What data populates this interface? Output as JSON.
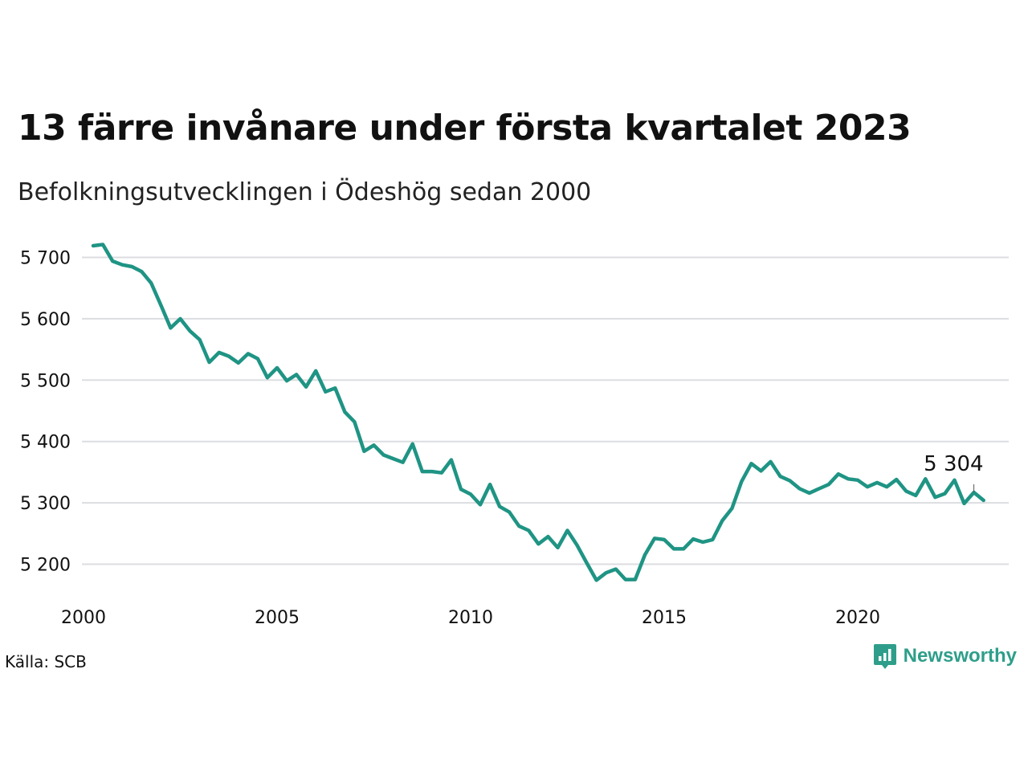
{
  "header": {
    "title": "13 färre invånare under första kvartalet 2023",
    "subtitle": "Befolkningsutvecklingen i Ödeshög sedan 2000"
  },
  "footer": {
    "source": "Källa: SCB",
    "brand": "Newsworthy"
  },
  "colors": {
    "line": "#1f9484",
    "grid": "#dcdde1",
    "text": "#111111",
    "brand": "#2e9e8a"
  },
  "icons": {
    "brand_logo": "newsworthy-logo-icon"
  },
  "chart_data": {
    "type": "line",
    "title": "13 färre invånare under första kvartalet 2023",
    "subtitle": "Befolkningsutvecklingen i Ödeshög sedan 2000",
    "xlabel": "",
    "ylabel": "",
    "grid": "horizontal",
    "legend": "none",
    "xlim": [
      2000,
      2024
    ],
    "ylim": [
      5160,
      5730
    ],
    "yticks": [
      5200,
      5300,
      5400,
      5500,
      5600,
      5700
    ],
    "ytick_labels": [
      "5 200",
      "5 300",
      "5 400",
      "5 500",
      "5 600",
      "5 700"
    ],
    "xticks": [
      2000,
      2005,
      2010,
      2015,
      2020
    ],
    "xtick_labels": [
      "2000",
      "2005",
      "2010",
      "2015",
      "2020"
    ],
    "annotation": {
      "text": "5 304",
      "x": 2023.0,
      "y": 5304
    },
    "series": [
      {
        "x": [
          2000.25,
          2000.5,
          2000.75,
          2001.0,
          2001.25,
          2001.5,
          2001.75,
          2002.0,
          2002.25,
          2002.5,
          2002.75,
          2003.0,
          2003.25,
          2003.5,
          2003.75,
          2004.0,
          2004.25,
          2004.5,
          2004.75,
          2005.0,
          2005.25,
          2005.5,
          2005.75,
          2006.0,
          2006.25,
          2006.5,
          2006.75,
          2007.0,
          2007.25,
          2007.5,
          2007.75,
          2008.0,
          2008.25,
          2008.5,
          2008.75,
          2009.0,
          2009.25,
          2009.5,
          2009.75,
          2010.0,
          2010.25,
          2010.5,
          2010.75,
          2011.0,
          2011.25,
          2011.5,
          2011.75,
          2012.0,
          2012.25,
          2012.5,
          2012.75,
          2013.0,
          2013.25,
          2013.5,
          2013.75,
          2014.0,
          2014.25,
          2014.5,
          2014.75,
          2015.0,
          2015.25,
          2015.5,
          2015.75,
          2016.0,
          2016.25,
          2016.5,
          2016.75,
          2017.0,
          2017.25,
          2017.5,
          2017.75,
          2018.0,
          2018.25,
          2018.5,
          2018.75,
          2019.0,
          2019.25,
          2019.5,
          2019.75,
          2020.0,
          2020.25,
          2020.5,
          2020.75,
          2021.0,
          2021.25,
          2021.5,
          2021.75,
          2022.0,
          2022.25,
          2022.5,
          2022.75,
          2023.0,
          2023.25
        ],
        "values": [
          5719,
          5721,
          5694,
          5688,
          5685,
          5677,
          5658,
          5622,
          5585,
          5600,
          5580,
          5566,
          5529,
          5545,
          5539,
          5528,
          5543,
          5535,
          5504,
          5520,
          5499,
          5509,
          5489,
          5515,
          5481,
          5487,
          5448,
          5432,
          5384,
          5394,
          5378,
          5372,
          5366,
          5396,
          5351,
          5351,
          5349,
          5370,
          5322,
          5314,
          5297,
          5330,
          5294,
          5285,
          5262,
          5255,
          5233,
          5245,
          5227,
          5255,
          5231,
          5202,
          5174,
          5186,
          5192,
          5175,
          5175,
          5215,
          5242,
          5240,
          5225,
          5225,
          5241,
          5236,
          5240,
          5271,
          5291,
          5335,
          5364,
          5352,
          5367,
          5343,
          5336,
          5323,
          5316,
          5323,
          5330,
          5347,
          5339,
          5337,
          5326,
          5333,
          5326,
          5338,
          5319,
          5312,
          5339,
          5309,
          5315,
          5337,
          5299,
          5317,
          5304
        ]
      }
    ]
  }
}
